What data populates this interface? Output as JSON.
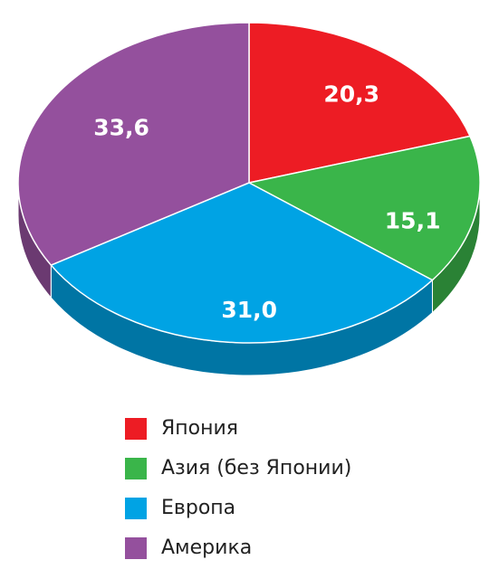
{
  "chart_data": {
    "type": "pie",
    "categories": [
      "Япония",
      "Азия (без Японии)",
      "Европа",
      "Америка"
    ],
    "values": [
      20.3,
      15.1,
      31.0,
      33.6
    ],
    "value_labels": [
      "20,3",
      "15,1",
      "31,0",
      "33,6"
    ],
    "colors": [
      "#ed1c24",
      "#3ab54a",
      "#00a3e4",
      "#94509d"
    ]
  }
}
